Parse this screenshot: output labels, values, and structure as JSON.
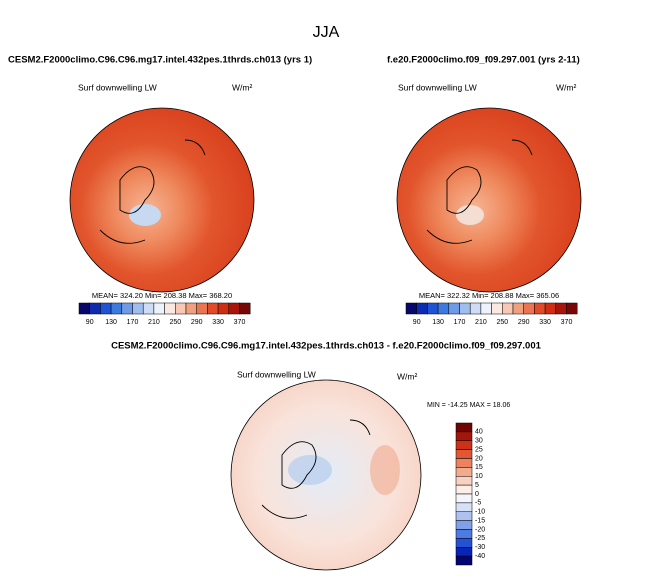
{
  "title": "JJA",
  "panels": [
    {
      "title": "CESM2.F2000climo.C96.C96.mg17.intel.432pes.1thrds.ch013 (yrs 1)",
      "variable": "Surf downwelling LW",
      "units": "W/m²",
      "stats": "MEAN= 324.20   Min= 208.38   Max= 368.20",
      "colorbar": [
        90,
        130,
        170,
        210,
        250,
        290,
        330,
        370
      ]
    },
    {
      "title": "f.e20.F2000climo.f09_f09.297.001 (yrs 2-11)",
      "variable": "Surf downwelling LW",
      "units": "W/m²",
      "stats": "MEAN= 322.32   Min= 208.88   Max= 365.06",
      "colorbar": [
        90,
        130,
        170,
        210,
        250,
        290,
        330,
        370
      ]
    },
    {
      "title": "CESM2.F2000climo.C96.C96.mg17.intel.432pes.1thrds.ch013 - f.e20.F2000climo.f09_f09.297.001",
      "variable": "Surf downwelling LW",
      "units": "W/m²",
      "stats": "MIN = -14.25  MAX = 18.06",
      "colorbar": [
        40,
        30,
        25,
        20,
        15,
        10,
        5,
        0,
        -5,
        -10,
        -15,
        -20,
        -25,
        -30,
        -40
      ]
    }
  ]
}
